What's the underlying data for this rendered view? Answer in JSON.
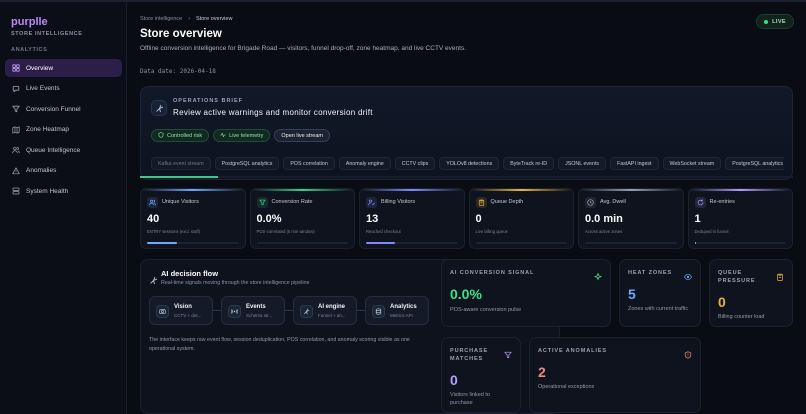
{
  "brand": {
    "name": "purplle",
    "subtitle": "STORE INTELLIGENCE"
  },
  "sidebar": {
    "section": "ANALYTICS",
    "items": [
      {
        "label": "Overview",
        "icon": "grid-icon",
        "active": true
      },
      {
        "label": "Live Events",
        "icon": "chat-icon"
      },
      {
        "label": "Conversion Funnel",
        "icon": "funnel-icon"
      },
      {
        "label": "Zone Heatmap",
        "icon": "map-icon"
      },
      {
        "label": "Queue Intelligence",
        "icon": "people-icon"
      },
      {
        "label": "Anomalies",
        "icon": "warning-icon"
      },
      {
        "label": "System Health",
        "icon": "server-icon"
      }
    ]
  },
  "header": {
    "breadcrumb_root": "Store intelligence",
    "breadcrumb_sep": "›",
    "breadcrumb_current": "Store overview",
    "live": "LIVE",
    "title": "Store overview",
    "description": "Offline conversion intelligence for Brigade Road — visitors, funnel drop-off, zone heatmap, and live CCTV events.",
    "data_date": "Data date: 2026-04-18"
  },
  "brief": {
    "kicker": "OPERATIONS BRIEF",
    "title": "Review active warnings and monitor conversion drift",
    "pills": {
      "risk": "Controlled risk",
      "telemetry": "Live telemetry",
      "stream": "Open live stream"
    },
    "tags": [
      "Kafka event stream",
      "PostgreSQL analytics",
      "POS correlation",
      "Anomaly engine",
      "CCTV clips",
      "YOLOv8 detections",
      "ByteTrack re-ID",
      "JSONL events",
      "FastAPI ingest",
      "WebSocket stream",
      "PostgreSQL analytics"
    ],
    "progress": 0.12
  },
  "metrics": [
    {
      "label": "Unique Visitors",
      "value": "40",
      "sub": "ENTRY sessions (excl. staff)",
      "color": "#6ea8ff",
      "progress": 0.33
    },
    {
      "label": "Conversion Rate",
      "value": "0.0%",
      "sub": "POS-correlated (5 min window)",
      "color": "#3ccf8a",
      "progress": 0.0
    },
    {
      "label": "Billing Visitors",
      "value": "13",
      "sub": "Reached checkout",
      "color": "#7c8cff",
      "progress": 0.32
    },
    {
      "label": "Queue Depth",
      "value": "0",
      "sub": "Live billing queue",
      "color": "#e8b33c",
      "progress": 0.0
    },
    {
      "label": "Avg. Dwell",
      "value": "0.0 min",
      "sub": "Across active zones",
      "color": "#9aa0b4",
      "progress": 0.0
    },
    {
      "label": "Re-entries",
      "value": "1",
      "sub": "Deduped in funnel",
      "color": "#a99bff",
      "progress": 0.02
    }
  ],
  "flow": {
    "title": "AI decision flow",
    "subtitle": "Real-time signals moving through the store intelligence pipeline",
    "nodes": [
      {
        "title": "Vision",
        "sub": "CCTV + det..."
      },
      {
        "title": "Events",
        "sub": "Schema str..."
      },
      {
        "title": "AI engine",
        "sub": "Funnel + an..."
      },
      {
        "title": "Analytics",
        "sub": "Metrics API"
      }
    ],
    "description": "The interface keeps raw event flow, session deduplication, POS correlation, and anomaly scoring visible as one operational system."
  },
  "cards": {
    "signal": {
      "label": "AI CONVERSION SIGNAL",
      "value": "0.0%",
      "desc": "POS-aware conversion pulse",
      "color": "#3ce28a"
    },
    "heat": {
      "label": "HEAT ZONES",
      "value": "5",
      "desc": "Zones with current traffic",
      "color": "#6ea8ff"
    },
    "queue": {
      "label": "QUEUE PRESSURE",
      "value": "0",
      "desc": "Billing counter load",
      "color": "#e8b33c"
    },
    "purchase": {
      "label": "PURCHASE MATCHES",
      "value": "0",
      "desc": "Visitors linked to purchase",
      "color": "#b79cff"
    },
    "anomalies": {
      "label": "ACTIVE ANOMALIES",
      "value": "2",
      "desc": "Operational exceptions",
      "color": "#f08a7a"
    }
  }
}
